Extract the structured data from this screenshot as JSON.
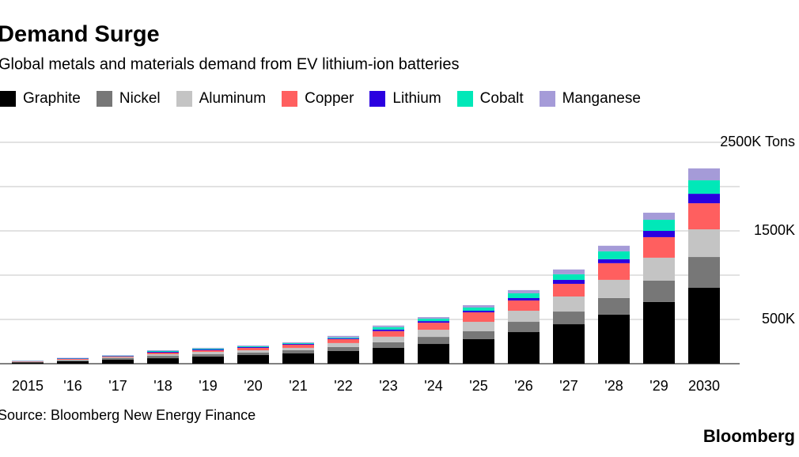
{
  "chart_data": {
    "type": "stacked-bar",
    "title": "Demand Surge",
    "subtitle": "Global metals and materials demand from EV lithium-ion batteries",
    "source": "Source: Bloomberg New Energy Finance",
    "brand": "Bloomberg",
    "categories": [
      "2015",
      "'16",
      "'17",
      "'18",
      "'19",
      "'20",
      "'21",
      "'22",
      "'23",
      "'24",
      "'25",
      "'26",
      "'27",
      "'28",
      "'29",
      "2030"
    ],
    "series": [
      {
        "name": "Graphite",
        "color": "#000000",
        "values": [
          13,
          27,
          45,
          62,
          80,
          98,
          116,
          143,
          179,
          223,
          277,
          357,
          446,
          554,
          697,
          857
        ]
      },
      {
        "name": "Nickel",
        "color": "#777777",
        "values": [
          5,
          9,
          18,
          27,
          27,
          27,
          36,
          45,
          63,
          80,
          89,
          116,
          143,
          188,
          241,
          348
        ]
      },
      {
        "name": "Aluminum",
        "color": "#c4c4c4",
        "values": [
          5,
          9,
          9,
          18,
          27,
          27,
          27,
          45,
          63,
          80,
          107,
          125,
          170,
          205,
          259,
          312
        ]
      },
      {
        "name": "Copper",
        "color": "#ff5f5f",
        "values": [
          5,
          9,
          9,
          18,
          18,
          27,
          36,
          45,
          63,
          80,
          107,
          116,
          143,
          188,
          232,
          295
        ]
      },
      {
        "name": "Lithium",
        "color": "#2a00e0",
        "values": [
          2,
          4,
          5,
          9,
          9,
          9,
          9,
          9,
          18,
          18,
          18,
          27,
          45,
          45,
          71,
          107
        ]
      },
      {
        "name": "Cobalt",
        "color": "#00e8b8",
        "values": [
          2,
          4,
          5,
          9,
          9,
          9,
          9,
          9,
          27,
          27,
          36,
          54,
          63,
          89,
          125,
          152
        ]
      },
      {
        "name": "Manganese",
        "color": "#a59bd8",
        "values": [
          2,
          4,
          5,
          9,
          9,
          9,
          9,
          18,
          18,
          18,
          27,
          36,
          54,
          63,
          80,
          134
        ]
      }
    ],
    "ylim": [
      0,
      2500
    ],
    "yticks": [
      {
        "value": 500,
        "label": "500K"
      },
      {
        "value": 1000,
        "label": null
      },
      {
        "value": 1500,
        "label": "1500K"
      },
      {
        "value": 2000,
        "label": null
      },
      {
        "value": 2500,
        "label": "2500K Tons"
      }
    ],
    "grid": true
  }
}
